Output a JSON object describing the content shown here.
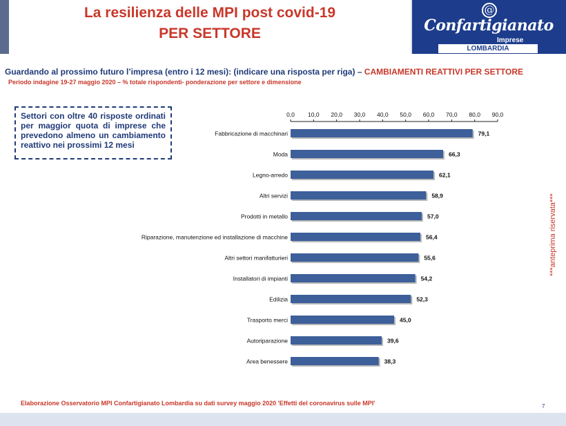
{
  "header": {
    "title_line1": "La resilienza delle MPI post covid-19",
    "title_line2": "PER SETTORE"
  },
  "logo": {
    "name": "Confartigianato",
    "sub": "Imprese",
    "region": "LOMBARDIA",
    "at_symbol": "@"
  },
  "subtitle": {
    "question": "Guardando al prossimo futuro l’impresa (entro i 12 mesi): (indicare una risposta per riga) – ",
    "topic": "CAMBIAMENTI REATTIVI PER SETTORE"
  },
  "period": "Periodo indagine 19-27 maggio 2020 – % totale rispondenti- ponderazione per settore e dimensione",
  "note_box": "Settori con oltre 40 risposte ordinati per maggior quota di imprese che prevedono almeno un cambiamento reattivo nei prossimi 12 mesi",
  "side_note": "***anteprima riservata***",
  "footer": "Elaborazione Osservatorio MPI Confartigianato Lombardia su dati survey maggio 2020  'Effetti del coronavirus sulle MPI'",
  "page_number": "7",
  "colors": {
    "bar": "#3d5f9a",
    "bar_shadow": "#8a8a8a",
    "title_red": "#c8372a",
    "dark_blue": "#1f3a78"
  },
  "chart_data": {
    "type": "bar",
    "orientation": "horizontal",
    "xlim": [
      0,
      90
    ],
    "ticks": [
      "0,0",
      "10,0",
      "20,0",
      "30,0",
      "40,0",
      "50,0",
      "60,0",
      "70,0",
      "80,0",
      "90,0"
    ],
    "tick_values": [
      0,
      10,
      20,
      30,
      40,
      50,
      60,
      70,
      80,
      90
    ],
    "axis_position": "top",
    "grid": false,
    "categories": [
      "Fabbricazione di macchinari",
      "Moda",
      "Legno-arredo",
      "Altri servizi",
      "Prodotti in metallo",
      "Riparazione, manutenzione ed installazione di macchine",
      "Altri settori manifatturieri",
      "Installatori di impianti",
      "Edilizia",
      "Trasporto merci",
      "Autoriparazione",
      "Area benessere"
    ],
    "values": [
      79.1,
      66.3,
      62.1,
      58.9,
      57.0,
      56.4,
      55.6,
      54.2,
      52.3,
      45.0,
      39.6,
      38.3
    ],
    "value_labels": [
      "79,1",
      "66,3",
      "62,1",
      "58,9",
      "57,0",
      "56,4",
      "55,6",
      "54,2",
      "52,3",
      "45,0",
      "39,6",
      "38,3"
    ]
  }
}
